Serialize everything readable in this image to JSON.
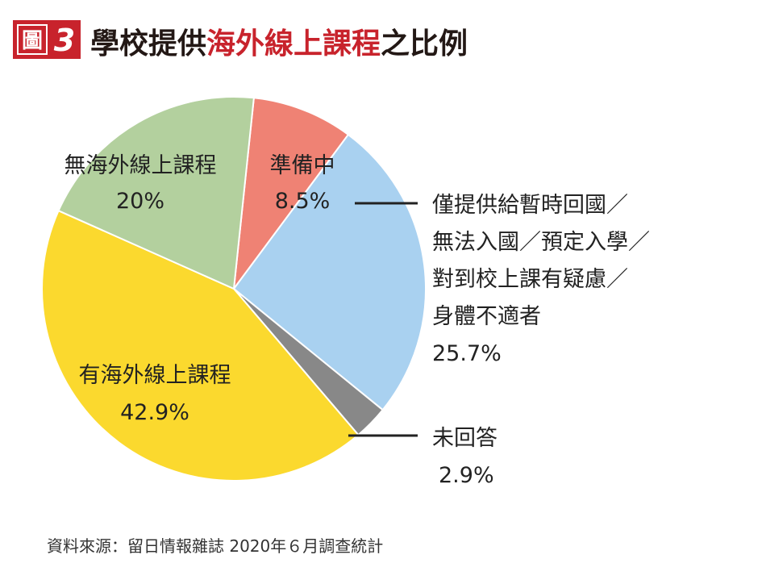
{
  "header": {
    "figure_badge_char": "圖",
    "figure_number": "3"
  },
  "chart_data": {
    "type": "pie",
    "title_parts": [
      {
        "text": "學校提供",
        "color": "#231815"
      },
      {
        "text": "海外線上課程",
        "color": "#c8232c"
      },
      {
        "text": "之比例",
        "color": "#231815"
      }
    ],
    "slices": [
      {
        "label_lines": [
          "準備中"
        ],
        "value": 8.5,
        "value_label": "8.5%",
        "color": "#ef8274"
      },
      {
        "label_lines": [
          "僅提供給暫時回國／",
          "無法入國／預定入學／",
          "對到校上課有疑慮／",
          "身體不適者"
        ],
        "value": 25.7,
        "value_label": "25.7%",
        "color": "#a9d1f0"
      },
      {
        "label_lines": [
          "未回答"
        ],
        "value": 2.9,
        "value_label": "2.9%",
        "color": "#888888"
      },
      {
        "label_lines": [
          "有海外線上課程"
        ],
        "value": 42.9,
        "value_label": "42.9%",
        "color": "#fbd92e"
      },
      {
        "label_lines": [
          "無海外線上課程"
        ],
        "value": 20,
        "value_label": "20%",
        "color": "#b3d09e"
      }
    ],
    "start_angle_deg": 6,
    "direction": "clockwise"
  },
  "footer": {
    "source": "資料來源：留日情報雜誌 2020年６月調查統計"
  },
  "colors": {
    "badge_red": "#c8232c",
    "title_dark": "#231815",
    "title_red": "#c8232c"
  }
}
